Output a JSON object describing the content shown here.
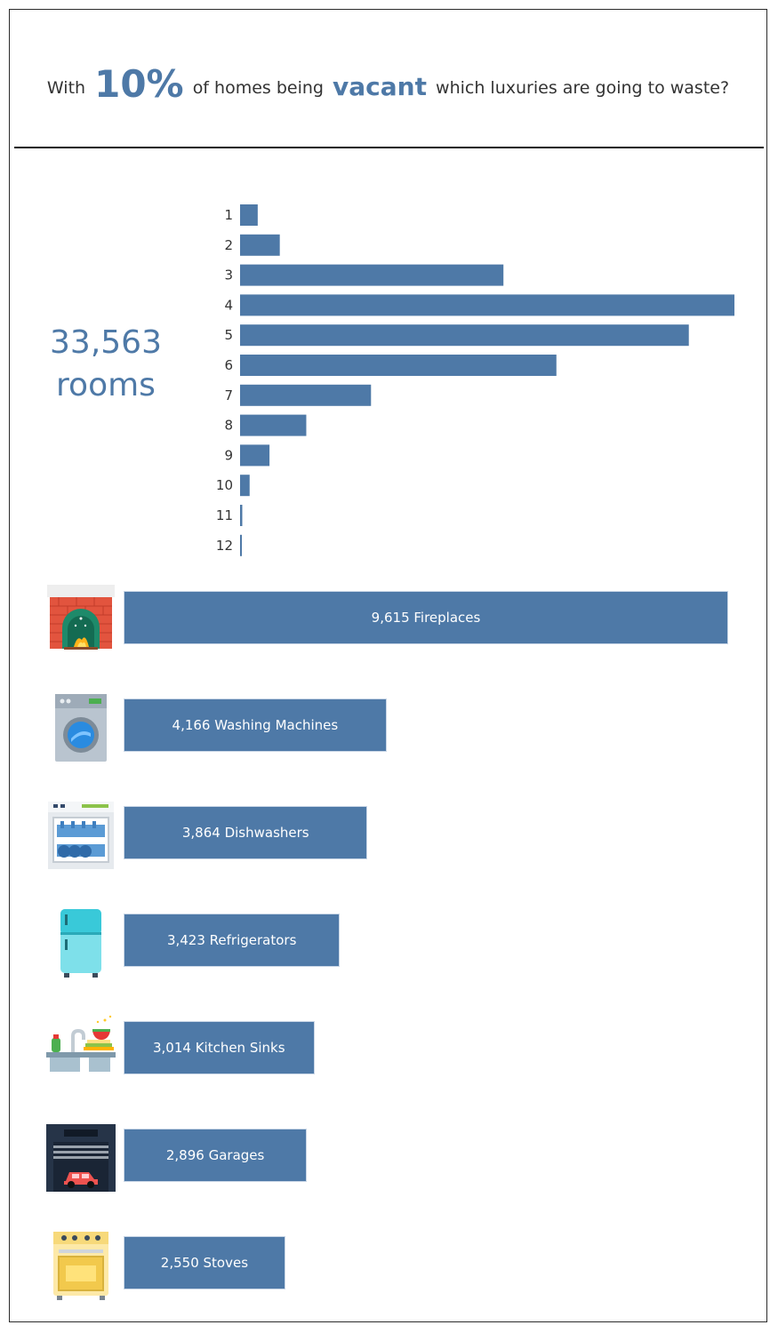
{
  "headline": {
    "prefix": "With",
    "percent": "10%",
    "middle": "of homes being",
    "keyword": "vacant",
    "suffix": "which luxuries are going to waste?"
  },
  "rooms_total": {
    "number": "33,563",
    "label": "rooms"
  },
  "colors": {
    "bar": "#4e79a7",
    "text": "#333333",
    "bar_label": "#ffffff"
  },
  "chart_data": [
    {
      "type": "bar",
      "orientation": "horizontal",
      "categories": [
        "1",
        "2",
        "3",
        "4",
        "5",
        "6",
        "7",
        "8",
        "9",
        "10",
        "11",
        "12"
      ],
      "values": [
        120,
        270,
        1790,
        3360,
        3050,
        2150,
        890,
        450,
        200,
        65,
        15,
        8
      ],
      "xlim": [
        0,
        3360
      ],
      "grid": false
    },
    {
      "type": "bar",
      "orientation": "horizontal",
      "categories": [
        "Fireplaces",
        "Washing Machines",
        "Dishwashers",
        "Refrigerators",
        "Kitchen Sinks",
        "Garages",
        "Stoves"
      ],
      "values": [
        9615,
        4166,
        3864,
        3423,
        3014,
        2896,
        2550
      ],
      "labels": [
        "9,615 Fireplaces",
        "4,166 Washing Machines",
        "3,864 Dishwashers",
        "3,423 Refrigerators",
        "3,014 Kitchen Sinks",
        "2,896 Garages",
        "2,550 Stoves"
      ],
      "icons": [
        "fireplace-icon",
        "washing-machine-icon",
        "dishwasher-icon",
        "refrigerator-icon",
        "kitchen-sink-icon",
        "garage-icon",
        "stove-icon"
      ],
      "xlim": [
        0,
        9615
      ],
      "grid": false
    }
  ]
}
